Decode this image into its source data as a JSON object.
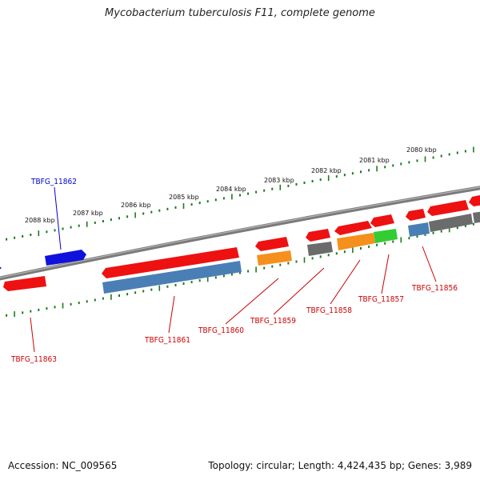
{
  "title": "Mycobacterium tuberculosis F11, complete genome",
  "footer": {
    "accession": "Accession: NC_009565",
    "topology": "Topology: circular; Length: 4,424,435 bp; Genes: 3,989"
  },
  "colors": {
    "axis": "#808080",
    "ticks": "#1e7a1e",
    "forward": "#ee1111",
    "blue": "#1111dd",
    "steelblue": "#4a7fb5",
    "orange": "#f5901c",
    "gray": "#6b6b6b",
    "green": "#33cc33",
    "label_red": "#cc0000",
    "label_blue": "#0000cc"
  },
  "ruler_labels": [
    "2088 kbp",
    "2087 kbp",
    "2086 kbp",
    "2085 kbp",
    "2084 kbp",
    "2083 kbp",
    "2082 kbp",
    "2081 kbp",
    "2080 kbp"
  ],
  "gene_labels": [
    {
      "text": "TBFG_11862",
      "color": "blue"
    },
    {
      "text": "TBFG_11863",
      "color": "red"
    },
    {
      "text": "TBFG_11861",
      "color": "red"
    },
    {
      "text": "TBFG_11860",
      "color": "red"
    },
    {
      "text": "TBFG_11859",
      "color": "red"
    },
    {
      "text": "TBFG_11858",
      "color": "red"
    },
    {
      "text": "TBFG_11857",
      "color": "red"
    },
    {
      "text": "TBFG_11856",
      "color": "red"
    }
  ],
  "features": [
    {
      "id": "f-red-left",
      "color": "forward"
    },
    {
      "id": "f-blue-left",
      "color": "blue"
    },
    {
      "id": "f-red-long",
      "color": "forward"
    },
    {
      "id": "f-steel-long",
      "color": "steelblue"
    },
    {
      "id": "f-red-2083",
      "color": "forward"
    },
    {
      "id": "f-orange-2083",
      "color": "orange"
    },
    {
      "id": "f-red-2082",
      "color": "forward"
    },
    {
      "id": "f-gray-2082",
      "color": "gray"
    },
    {
      "id": "f-red-2081a",
      "color": "forward"
    },
    {
      "id": "f-red-2081b",
      "color": "forward"
    },
    {
      "id": "f-orange-2081",
      "color": "orange"
    },
    {
      "id": "f-green-2081",
      "color": "green"
    },
    {
      "id": "f-red-2080a",
      "color": "forward"
    },
    {
      "id": "f-red-2080b",
      "color": "forward"
    },
    {
      "id": "f-red-2080c",
      "color": "forward"
    },
    {
      "id": "f-steel-2080",
      "color": "steelblue"
    },
    {
      "id": "f-gray-2080a",
      "color": "gray"
    },
    {
      "id": "f-gray-2080b",
      "color": "gray"
    }
  ]
}
